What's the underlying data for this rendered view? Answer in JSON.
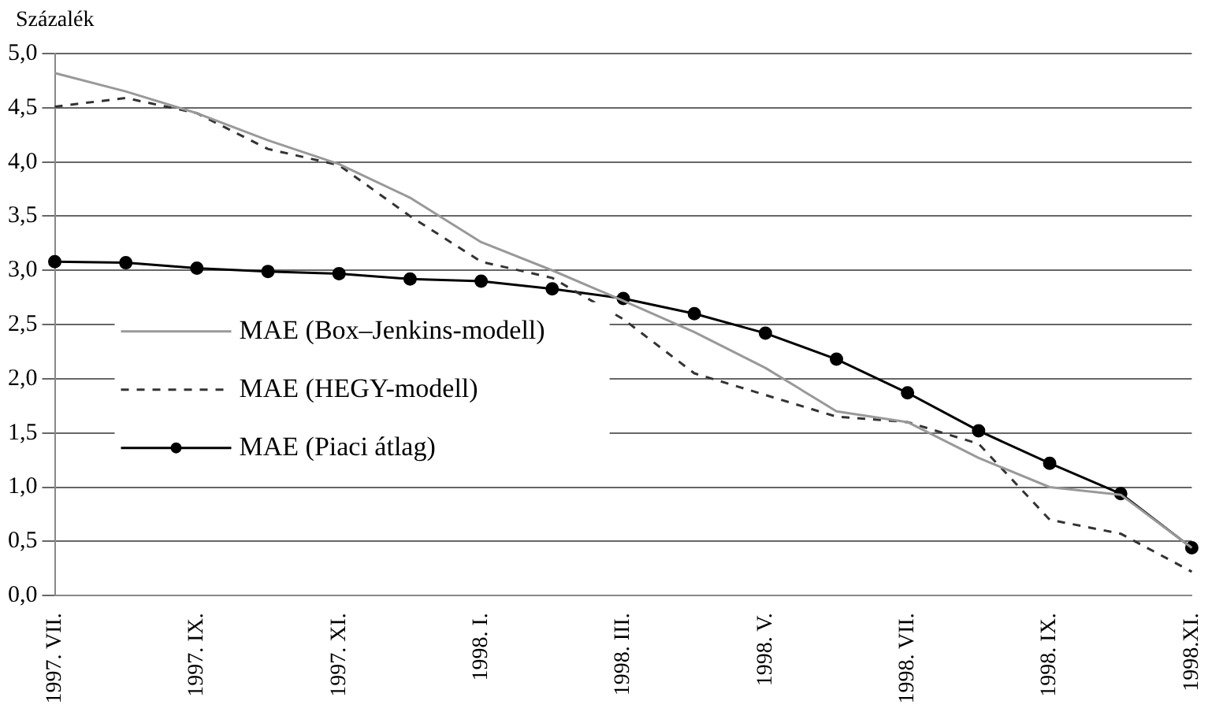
{
  "chart_data": {
    "type": "line",
    "ylabel": "Százalék",
    "categories": [
      "1997. VII.",
      null,
      "1997. IX.",
      null,
      "1997. XI.",
      null,
      "1998. I.",
      null,
      "1998. III.",
      null,
      "1998. V.",
      null,
      "1998. VII.",
      null,
      "1998. IX.",
      null,
      "1998.XI."
    ],
    "series": [
      {
        "name": "MAE (Box–Jenkins-modell)",
        "color": "#999999",
        "line_style": "solid",
        "marker": "none",
        "values": [
          4.82,
          4.65,
          4.45,
          4.2,
          3.98,
          3.67,
          3.26,
          3.0,
          2.72,
          2.43,
          2.1,
          1.7,
          1.6,
          1.27,
          1.0,
          0.93,
          0.44
        ]
      },
      {
        "name": "MAE (HEGY-modell)",
        "color": "#333333",
        "line_style": "dashed",
        "marker": "none",
        "values": [
          4.51,
          4.59,
          4.45,
          4.12,
          3.97,
          3.5,
          3.08,
          2.93,
          2.55,
          2.05,
          1.85,
          1.65,
          1.6,
          1.4,
          0.7,
          0.57,
          0.22
        ]
      },
      {
        "name": "MAE (Piaci átlag)",
        "color": "#000000",
        "line_style": "solid",
        "marker": "circle",
        "values": [
          3.08,
          3.07,
          3.02,
          2.99,
          2.97,
          2.92,
          2.9,
          2.83,
          2.74,
          2.6,
          2.42,
          2.18,
          1.87,
          1.52,
          1.22,
          0.94,
          0.44
        ]
      }
    ],
    "ylim": [
      0,
      5
    ],
    "yticks": [
      {
        "value": 0,
        "label": "0,0"
      },
      {
        "value": 0.5,
        "label": "0,5"
      },
      {
        "value": 1,
        "label": "1,0"
      },
      {
        "value": 1.5,
        "label": "1,5"
      },
      {
        "value": 2,
        "label": "2,0"
      },
      {
        "value": 2.5,
        "label": "2,5"
      },
      {
        "value": 3,
        "label": "3,0"
      },
      {
        "value": 3.5,
        "label": "3,5"
      },
      {
        "value": 4,
        "label": "4,0"
      },
      {
        "value": 4.5,
        "label": "4,5"
      },
      {
        "value": 5,
        "label": "5,0"
      }
    ],
    "grid": "y",
    "legend": "left"
  }
}
